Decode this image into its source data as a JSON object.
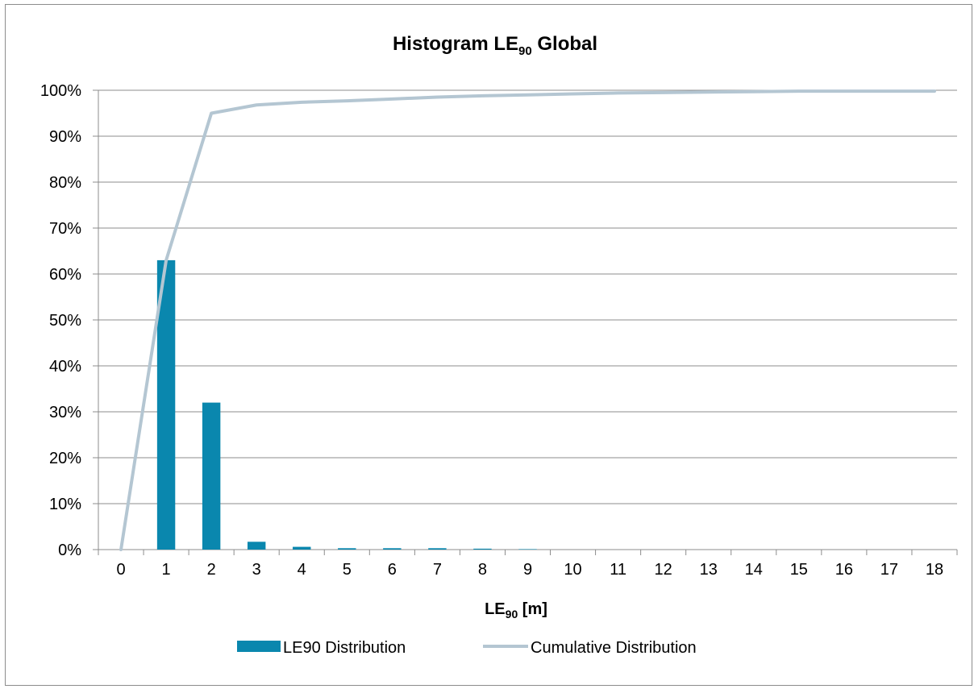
{
  "chart_data": {
    "type": "bar",
    "title": "Histogram  LE",
    "title_subscript": "90",
    "title_suffix": " Global",
    "xlabel": "LE",
    "xlabel_subscript": "90",
    "xlabel_suffix": " [m]",
    "ylabel": "",
    "x": [
      0,
      1,
      2,
      3,
      4,
      5,
      6,
      7,
      8,
      9,
      10,
      11,
      12,
      13,
      14,
      15,
      16,
      17,
      18
    ],
    "ylim": [
      0,
      100
    ],
    "y_tick_labels": [
      "0%",
      "10%",
      "20%",
      "30%",
      "40%",
      "50%",
      "60%",
      "70%",
      "80%",
      "90%",
      "100%"
    ],
    "grid": true,
    "legend_position": "bottom",
    "series": [
      {
        "name": "LE90 Distribution",
        "type": "bar",
        "color": "#0a87ae",
        "values": [
          0,
          63,
          32,
          1.7,
          0.6,
          0.3,
          0.3,
          0.3,
          0.2,
          0.1,
          0,
          0,
          0,
          0,
          0,
          0,
          0,
          0,
          0
        ]
      },
      {
        "name": "Cumulative Distribution",
        "type": "line",
        "color": "#b4c6d2",
        "values": [
          0,
          63,
          95,
          96.8,
          97.4,
          97.7,
          98.1,
          98.5,
          98.8,
          99.0,
          99.2,
          99.4,
          99.5,
          99.6,
          99.7,
          99.8,
          99.8,
          99.8,
          99.8
        ]
      }
    ]
  }
}
